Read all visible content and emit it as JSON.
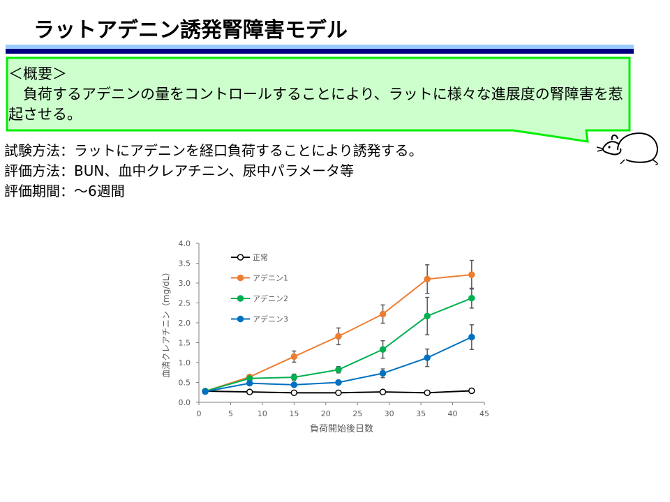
{
  "title": "ラットアデニン誘発腎障害モデル",
  "overview": {
    "heading": "＜概要＞",
    "body": "　負荷するアデニンの量をコントロールすることにより、ラットに様々な進展度の腎障害を惹起させる。"
  },
  "details": [
    "試験方法：ラットにアデニンを経口負荷することにより誘発する。",
    "評価方法：BUN、血中クレアチニン、尿中パラメータ等",
    "評価期間：～6週間"
  ],
  "icons": {
    "mascot": "rat-icon"
  },
  "colors": {
    "callout_fill": "#ccffcc",
    "callout_border": "#00ee00",
    "bar_light": "#99ccff",
    "bar_dark": "#000080"
  },
  "chart_data": {
    "type": "line",
    "xlabel": "負荷開始後日数",
    "ylabel": "血清クレアチニン（mg/dL）",
    "xlim": [
      0,
      45
    ],
    "ylim": [
      0,
      4.0
    ],
    "xticks": [
      "0",
      "5",
      "10",
      "15",
      "20",
      "25",
      "30",
      "35",
      "40",
      "45"
    ],
    "yticks": [
      "0.0",
      "0.5",
      "1.0",
      "1.5",
      "2.0",
      "2.5",
      "3.0",
      "3.5",
      "4.0"
    ],
    "legend": "top-left",
    "grid": false,
    "x": [
      1,
      8,
      15,
      22,
      29,
      36,
      43
    ],
    "series": [
      {
        "name": "正常",
        "color": "#000000",
        "hollow": true,
        "values": [
          0.28,
          0.26,
          0.24,
          0.24,
          0.26,
          0.24,
          0.29
        ],
        "errors": [
          0,
          0,
          0,
          0,
          0,
          0,
          0
        ]
      },
      {
        "name": "アデニン1",
        "color": "#ed7d31",
        "hollow": false,
        "values": [
          0.28,
          0.64,
          1.15,
          1.66,
          2.22,
          3.1,
          3.21
        ],
        "errors": [
          0,
          0.02,
          0.14,
          0.21,
          0.23,
          0.36,
          0.36
        ]
      },
      {
        "name": "アデニン2",
        "color": "#00b050",
        "hollow": false,
        "values": [
          0.28,
          0.6,
          0.63,
          0.82,
          1.33,
          2.17,
          2.62
        ],
        "errors": [
          0,
          0.02,
          0.08,
          0.08,
          0.22,
          0.47,
          0.25
        ]
      },
      {
        "name": "アデニン3",
        "color": "#0070c0",
        "hollow": false,
        "values": [
          0.27,
          0.48,
          0.44,
          0.5,
          0.73,
          1.12,
          1.64
        ],
        "errors": [
          0,
          0.03,
          0.02,
          0.03,
          0.11,
          0.22,
          0.31
        ]
      }
    ]
  }
}
